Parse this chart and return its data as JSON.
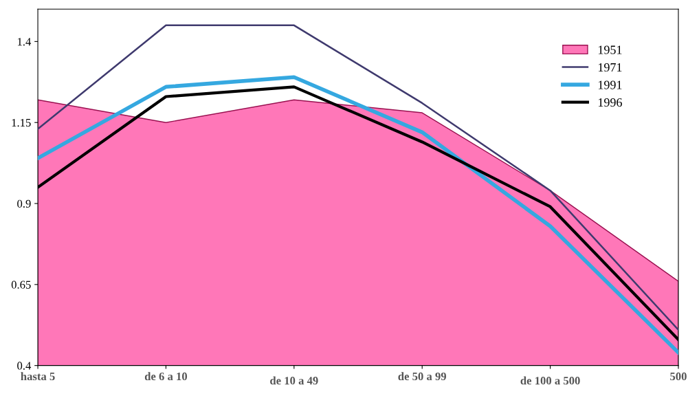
{
  "chart_data": {
    "type": "line",
    "categories": [
      "hasta 5",
      "de 6 a 10",
      "de 10 a 49",
      "de 50 a 99",
      "de 100 a 500",
      "500"
    ],
    "series": [
      {
        "name": "1951",
        "type": "area",
        "color": "#ff77b8",
        "values": [
          1.22,
          1.15,
          1.22,
          1.18,
          0.94,
          0.66
        ]
      },
      {
        "name": "1971",
        "color": "#3f3a6e",
        "values": [
          1.13,
          1.45,
          1.45,
          1.21,
          0.94,
          0.51
        ]
      },
      {
        "name": "1991",
        "color": "#35a8e0",
        "values": [
          1.04,
          1.26,
          1.29,
          1.12,
          0.83,
          0.44
        ]
      },
      {
        "name": "1996",
        "color": "#000000",
        "values": [
          0.95,
          1.23,
          1.26,
          1.09,
          0.89,
          0.48
        ]
      }
    ],
    "ylim": [
      0.4,
      1.5
    ],
    "yticks": [
      0.4,
      0.65,
      0.9,
      1.15,
      1.4
    ],
    "grid": false,
    "legend": "top right",
    "marker": "none",
    "line_style": "solid"
  }
}
